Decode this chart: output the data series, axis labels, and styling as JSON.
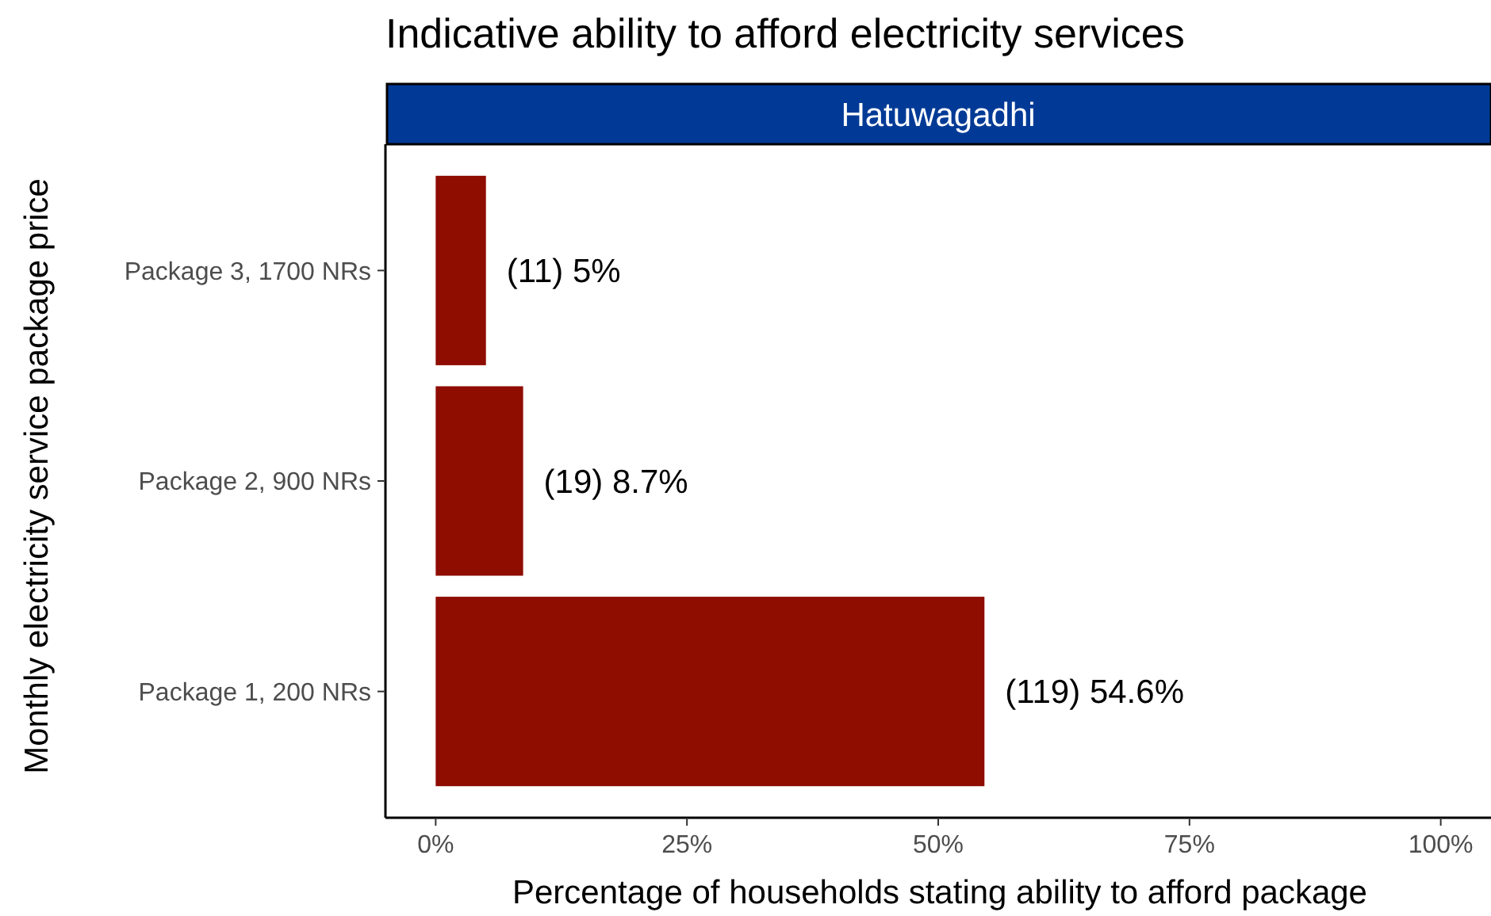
{
  "chart_data": {
    "type": "bar",
    "orientation": "horizontal",
    "title": "Indicative ability to afford electricity services",
    "subtitle": "Hatuwagadhi",
    "xlabel": "Percentage of households stating ability to afford package",
    "ylabel": "Monthly electricity service package price",
    "categories": [
      "Package 3, 1700 NRs",
      "Package 2, 900 NRs",
      "Package 1, 200 NRs"
    ],
    "values": [
      5,
      8.7,
      54.6
    ],
    "value_labels": [
      "(11) 5%",
      "(19) 8.7%",
      "(119) 54.6%"
    ],
    "color": "#8e0c00",
    "xlim": [
      -5,
      105
    ],
    "xticks": [
      {
        "value": 0,
        "label": "0%"
      },
      {
        "value": 25,
        "label": "25%"
      },
      {
        "value": 50,
        "label": "50%"
      },
      {
        "value": 75,
        "label": "75%"
      },
      {
        "value": 100,
        "label": "100%"
      }
    ],
    "grid": false
  }
}
